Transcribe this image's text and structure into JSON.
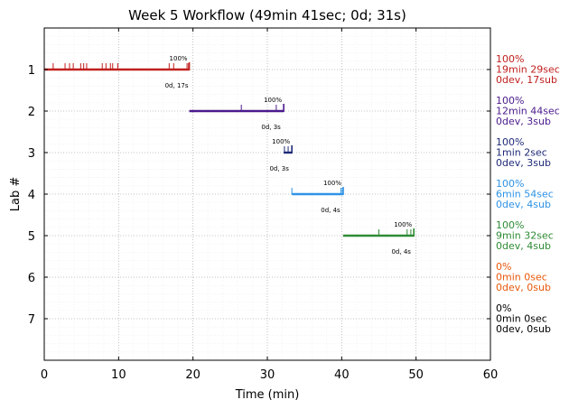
{
  "chart_data": {
    "type": "timeline",
    "title": "Week 5 Workflow (49min 41sec; 0d; 31s)",
    "xlabel": "Time (min)",
    "ylabel": "Lab #",
    "xlim": [
      0,
      60
    ],
    "ylim": [
      0,
      8
    ],
    "x_ticks": [
      "0",
      "10",
      "20",
      "30",
      "40",
      "50",
      "60"
    ],
    "y_ticks": [
      "1",
      "2",
      "3",
      "4",
      "5",
      "6",
      "7"
    ],
    "grid": true,
    "series": [
      {
        "lab": 1,
        "color": "#c0201e",
        "start": 0,
        "end": 19.5,
        "submissions": [
          1.2,
          2.8,
          3.4,
          3.9,
          4.9,
          5.3,
          5.7,
          7.8,
          8.3,
          8.9,
          9.2,
          9.9,
          16.8,
          17.4,
          19.2,
          19.4
        ],
        "final_mark": 19.5,
        "pct_label": "100%",
        "delay_label": "0d, 17s",
        "summary": [
          "100%",
          "19min 29sec",
          "0dev, 17sub"
        ]
      },
      {
        "lab": 2,
        "color": "#4b1a8c",
        "start": 19.5,
        "end": 32.2,
        "submissions": [
          26.5,
          31.2
        ],
        "final_mark": 32.2,
        "pct_label": "100%",
        "delay_label": "0d, 3s",
        "summary": [
          "100%",
          "12min 44sec",
          "0dev, 3sub"
        ]
      },
      {
        "lab": 3,
        "color": "#1f2a78",
        "start": 32.2,
        "end": 33.3,
        "submissions": [
          32.3,
          32.8
        ],
        "final_mark": 33.3,
        "pct_label": "100%",
        "delay_label": "0d, 3s",
        "summary": [
          "100%",
          "1min 2sec",
          "0dev, 3sub"
        ]
      },
      {
        "lab": 4,
        "color": "#2e93e6",
        "start": 33.3,
        "end": 40.2,
        "submissions": [
          33.3,
          39.9,
          40.1
        ],
        "final_mark": 40.2,
        "pct_label": "100%",
        "delay_label": "0d, 4s",
        "summary": [
          "100%",
          "6min 54sec",
          "0dev, 4sub"
        ]
      },
      {
        "lab": 5,
        "color": "#2e8b34",
        "start": 40.2,
        "end": 49.7,
        "submissions": [
          45.0,
          48.8,
          49.3
        ],
        "final_mark": 49.7,
        "pct_label": "100%",
        "delay_label": "0d, 4s",
        "summary": [
          "100%",
          "9min 32sec",
          "0dev, 4sub"
        ]
      },
      {
        "lab": 6,
        "color": "#e8590c",
        "summary": [
          "0%",
          "0min 0sec",
          "0dev, 0sub"
        ]
      },
      {
        "lab": 7,
        "color": "#000000",
        "summary": [
          "0%",
          "0min 0sec",
          "0dev, 0sub"
        ]
      }
    ]
  }
}
